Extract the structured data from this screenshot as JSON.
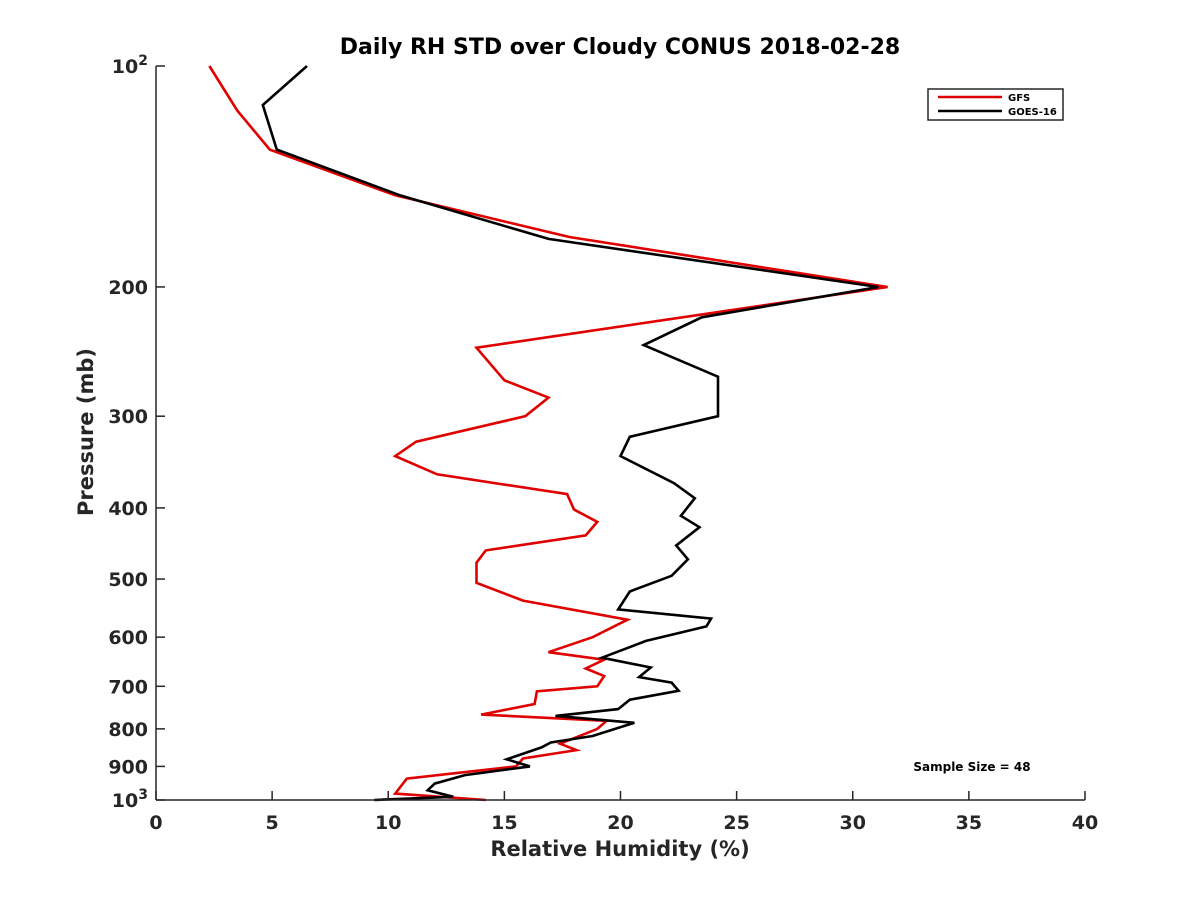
{
  "chart_data": {
    "type": "line",
    "title": "Daily RH STD over Cloudy CONUS 2018-02-28",
    "xlabel": "Relative Humidity (%)",
    "ylabel": "Pressure (mb)",
    "xlim": [
      0,
      40
    ],
    "ylim": [
      100,
      1000
    ],
    "y_scale": "log",
    "y_reversed": true,
    "grid": false,
    "legend_position": "top-right",
    "x_ticks": [
      0,
      5,
      10,
      15,
      20,
      25,
      30,
      35,
      40
    ],
    "x_tick_labels": [
      "0",
      "5",
      "10",
      "15",
      "20",
      "25",
      "30",
      "35",
      "40"
    ],
    "y_ticks": [
      100,
      200,
      300,
      400,
      500,
      600,
      700,
      800,
      900,
      1000
    ],
    "y_tick_labels": [
      {
        "base": "10",
        "sup": "2"
      },
      {
        "base": "200",
        "sup": ""
      },
      {
        "base": "300",
        "sup": ""
      },
      {
        "base": "400",
        "sup": ""
      },
      {
        "base": "500",
        "sup": ""
      },
      {
        "base": "600",
        "sup": ""
      },
      {
        "base": "700",
        "sup": ""
      },
      {
        "base": "800",
        "sup": ""
      },
      {
        "base": "900",
        "sup": ""
      },
      {
        "base": "10",
        "sup": "3"
      }
    ],
    "annotation": "Sample Size = 48",
    "series": [
      {
        "name": "GFS",
        "color": "#e00000",
        "points": [
          [
            2.3,
            100
          ],
          [
            3.5,
            115
          ],
          [
            4.9,
            130
          ],
          [
            10.3,
            150
          ],
          [
            17.8,
            171
          ],
          [
            31.5,
            200
          ],
          [
            13.8,
            242
          ],
          [
            15.0,
            268
          ],
          [
            16.9,
            283
          ],
          [
            15.9,
            300
          ],
          [
            11.2,
            325
          ],
          [
            10.3,
            340
          ],
          [
            12.1,
            360
          ],
          [
            17.7,
            383
          ],
          [
            18.0,
            402
          ],
          [
            19.0,
            418
          ],
          [
            18.5,
            436
          ],
          [
            14.2,
            457
          ],
          [
            13.8,
            475
          ],
          [
            13.8,
            506
          ],
          [
            15.8,
            535
          ],
          [
            20.3,
            568
          ],
          [
            18.8,
            600
          ],
          [
            16.9,
            629
          ],
          [
            19.3,
            644
          ],
          [
            18.5,
            662
          ],
          [
            19.3,
            678
          ],
          [
            19.0,
            700
          ],
          [
            16.4,
            711
          ],
          [
            16.3,
            740
          ],
          [
            14.0,
            765
          ],
          [
            19.4,
            780
          ],
          [
            19.0,
            800
          ],
          [
            17.4,
            838
          ],
          [
            18.1,
            855
          ],
          [
            15.8,
            878
          ],
          [
            15.5,
            900
          ],
          [
            10.8,
            935
          ],
          [
            10.3,
            980
          ],
          [
            14.2,
            1000
          ]
        ]
      },
      {
        "name": "GOES-16",
        "color": "#000000",
        "points": [
          [
            6.5,
            100
          ],
          [
            4.6,
            113
          ],
          [
            5.2,
            130
          ],
          [
            10.5,
            150
          ],
          [
            16.9,
            172
          ],
          [
            31.1,
            200
          ],
          [
            23.5,
            220
          ],
          [
            21.0,
            240
          ],
          [
            24.2,
            265
          ],
          [
            24.2,
            300
          ],
          [
            20.4,
            320
          ],
          [
            20.0,
            340
          ],
          [
            22.3,
            370
          ],
          [
            23.2,
            388
          ],
          [
            22.6,
            410
          ],
          [
            23.4,
            425
          ],
          [
            22.4,
            450
          ],
          [
            22.9,
            470
          ],
          [
            22.2,
            495
          ],
          [
            20.4,
            520
          ],
          [
            19.9,
            550
          ],
          [
            23.9,
            566
          ],
          [
            23.7,
            580
          ],
          [
            21.1,
            607
          ],
          [
            19.2,
            640
          ],
          [
            21.3,
            660
          ],
          [
            20.8,
            680
          ],
          [
            22.2,
            692
          ],
          [
            22.5,
            710
          ],
          [
            20.4,
            730
          ],
          [
            19.9,
            752
          ],
          [
            17.2,
            768
          ],
          [
            20.6,
            785
          ],
          [
            18.8,
            818
          ],
          [
            17.0,
            835
          ],
          [
            16.6,
            848
          ],
          [
            15.1,
            880
          ],
          [
            16.1,
            900
          ],
          [
            13.3,
            925
          ],
          [
            12.0,
            950
          ],
          [
            11.7,
            970
          ],
          [
            12.8,
            990
          ],
          [
            9.4,
            1000
          ]
        ]
      }
    ]
  }
}
